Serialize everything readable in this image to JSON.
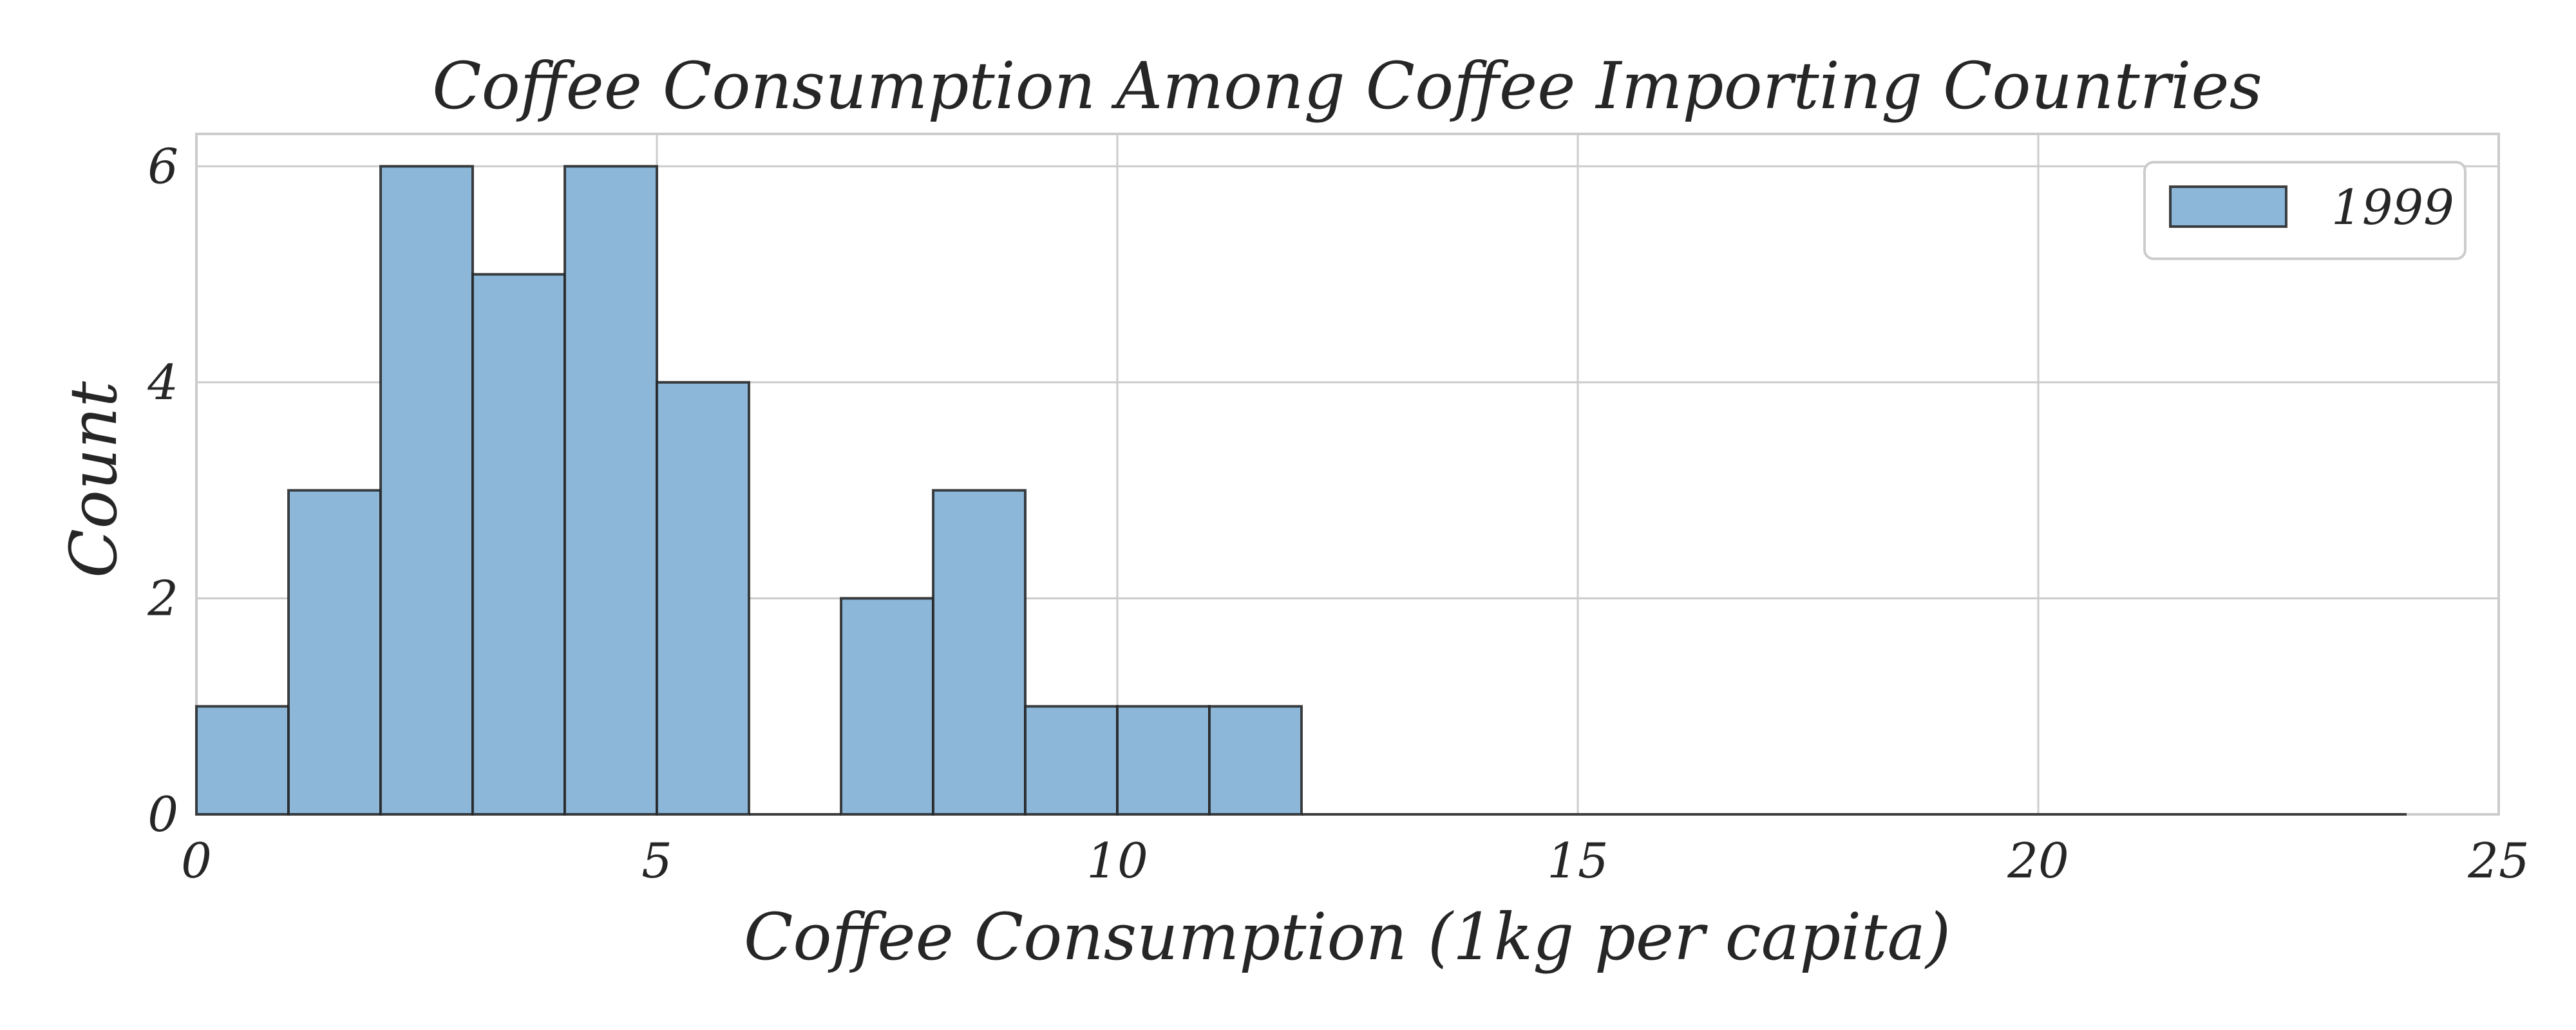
{
  "chart_data": {
    "type": "bar",
    "title": "Coffee Consumption Among Coffee Importing Countries",
    "xlabel": "Coffee Consumption (1kg per capita)",
    "ylabel": "Count",
    "xlim": [
      0,
      25
    ],
    "ylim": [
      0,
      6.3
    ],
    "xticks": [
      0,
      5,
      10,
      15,
      20,
      25
    ],
    "yticks": [
      0,
      2,
      4,
      6
    ],
    "grid": true,
    "legend_position": "top-right",
    "bar_color": "#8cb7d8",
    "bin_width": 1,
    "series": [
      {
        "name": "1999",
        "bins": [
          {
            "start": 0,
            "end": 1,
            "count": 1
          },
          {
            "start": 1,
            "end": 2,
            "count": 3
          },
          {
            "start": 2,
            "end": 3,
            "count": 6
          },
          {
            "start": 3,
            "end": 4,
            "count": 5
          },
          {
            "start": 4,
            "end": 5,
            "count": 6
          },
          {
            "start": 5,
            "end": 6,
            "count": 4
          },
          {
            "start": 6,
            "end": 7,
            "count": 0
          },
          {
            "start": 7,
            "end": 8,
            "count": 2
          },
          {
            "start": 8,
            "end": 9,
            "count": 3
          },
          {
            "start": 9,
            "end": 10,
            "count": 1
          },
          {
            "start": 10,
            "end": 11,
            "count": 1
          },
          {
            "start": 11,
            "end": 12,
            "count": 1
          },
          {
            "start": 12,
            "end": 13,
            "count": 0
          },
          {
            "start": 13,
            "end": 14,
            "count": 0
          },
          {
            "start": 14,
            "end": 15,
            "count": 0
          },
          {
            "start": 15,
            "end": 16,
            "count": 0
          },
          {
            "start": 16,
            "end": 17,
            "count": 0
          },
          {
            "start": 17,
            "end": 18,
            "count": 0
          },
          {
            "start": 18,
            "end": 19,
            "count": 0
          },
          {
            "start": 19,
            "end": 20,
            "count": 0
          },
          {
            "start": 20,
            "end": 21,
            "count": 0
          },
          {
            "start": 21,
            "end": 22,
            "count": 0
          },
          {
            "start": 22,
            "end": 23,
            "count": 0
          },
          {
            "start": 23,
            "end": 24,
            "count": 0
          }
        ]
      }
    ]
  }
}
